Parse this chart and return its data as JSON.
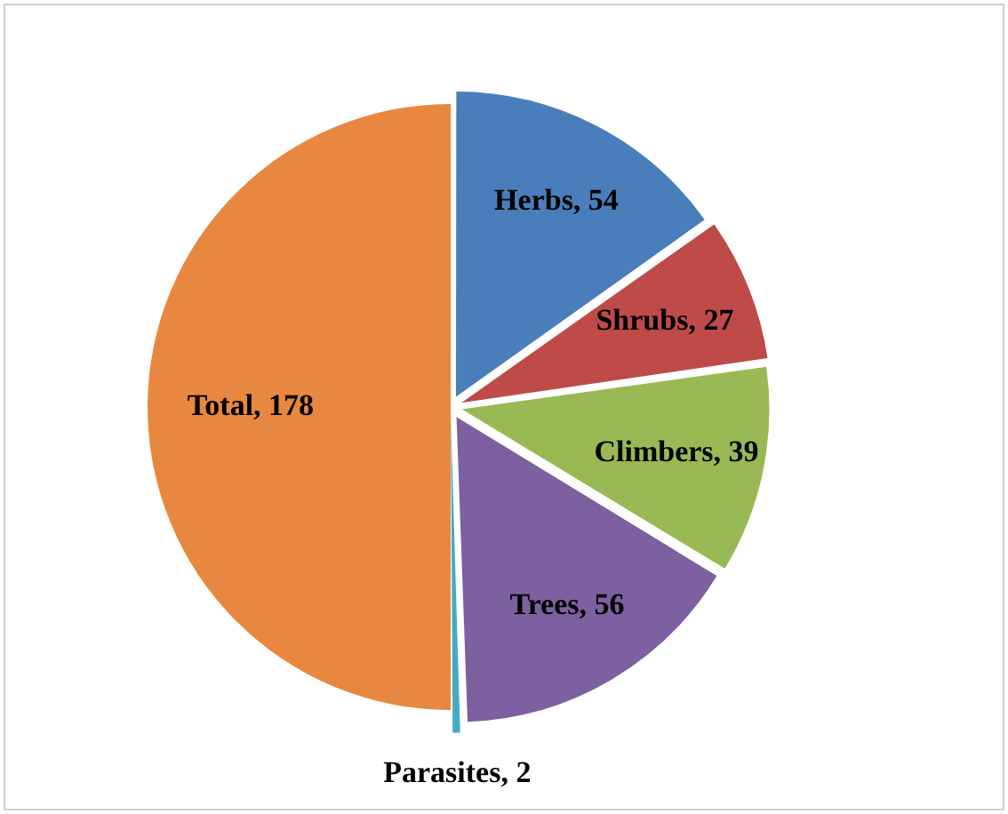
{
  "chart_data": {
    "type": "pie",
    "categories": [
      "Herbs",
      "Shrubs",
      "Climbers",
      "Trees",
      "Parasites",
      "Total"
    ],
    "values": [
      54,
      27,
      39,
      56,
      2,
      178
    ],
    "colors": [
      "#4a7ebb",
      "#be4b48",
      "#98b954",
      "#7d60a0",
      "#46aac5",
      "#e8873f"
    ],
    "value_labels": [
      ", 54",
      ", 27",
      ", 39",
      ", 56",
      ", 2",
      ", 178"
    ],
    "legend": false
  }
}
